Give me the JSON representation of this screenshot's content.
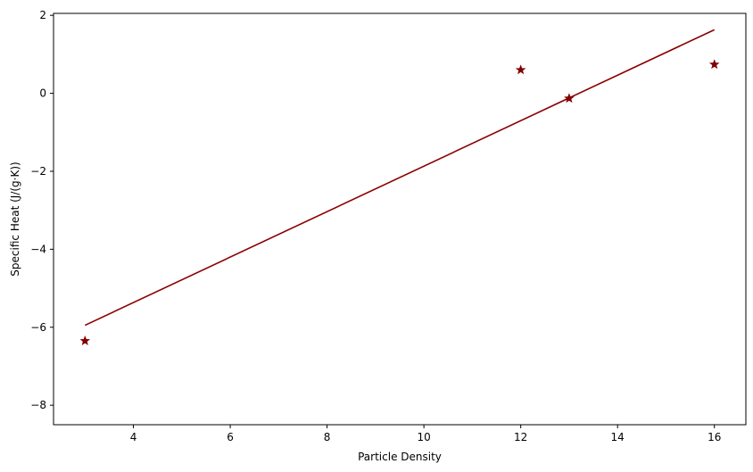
{
  "chart_data": {
    "type": "scatter",
    "title": "",
    "xlabel": "Particle Density",
    "ylabel": "Specific Heat (J/(g·K))",
    "xlim": [
      2.35,
      16.65
    ],
    "ylim": [
      -8.5,
      2.05
    ],
    "xticks": [
      4,
      6,
      8,
      10,
      12,
      14,
      16
    ],
    "xtick_labels": [
      "4",
      "6",
      "8",
      "10",
      "12",
      "14",
      "16"
    ],
    "yticks": [
      -8,
      -6,
      -4,
      -2,
      0,
      2
    ],
    "ytick_labels": [
      "−8",
      "−6",
      "−4",
      "−2",
      "0",
      "2"
    ],
    "grid": false,
    "series": [
      {
        "kind": "points",
        "marker": "star",
        "color": "#800000",
        "x": [
          3,
          12,
          13,
          16
        ],
        "y": [
          -6.35,
          0.6,
          -0.13,
          0.74
        ]
      },
      {
        "kind": "fit-line",
        "color": "#8b0000",
        "x": [
          3,
          16
        ],
        "y": [
          -5.95,
          1.63
        ]
      }
    ]
  }
}
